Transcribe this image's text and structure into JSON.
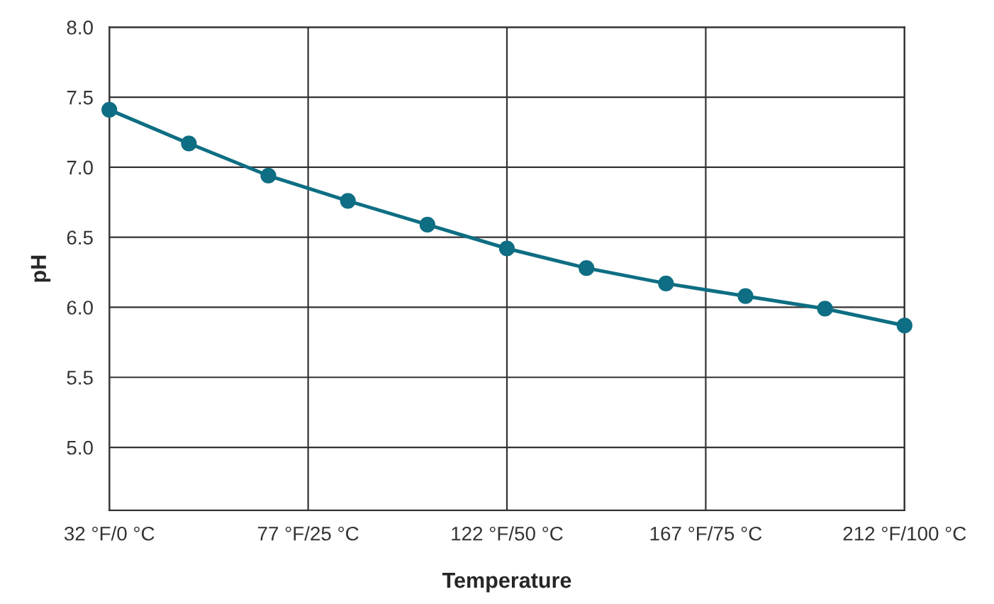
{
  "chart_data": {
    "type": "line",
    "xlabel": "Temperature",
    "ylabel": "pH",
    "categories": [
      "32 °F/0 °C",
      null,
      null,
      null,
      null,
      "77 °F/25 °C",
      null,
      null,
      null,
      null,
      "122 °F/50 °C",
      null,
      null,
      null,
      null,
      "167 °F/75 °C",
      null,
      null,
      null,
      null,
      "212 °F/100 °C"
    ],
    "series": [
      {
        "color": "#0e6e83",
        "values": [
          7.41,
          null,
          7.17,
          null,
          6.94,
          null,
          6.76,
          null,
          6.59,
          null,
          6.42,
          null,
          6.28,
          null,
          6.17,
          null,
          6.08,
          null,
          5.99,
          null,
          5.87
        ]
      }
    ],
    "ylim": [
      4.55,
      8.0
    ],
    "yticks": [
      {
        "value": 5.0,
        "label": "5.0"
      },
      {
        "value": 5.5,
        "label": "5.5"
      },
      {
        "value": 6.0,
        "label": "6.0"
      },
      {
        "value": 6.5,
        "label": "6.5"
      },
      {
        "value": 7.0,
        "label": "7.0"
      },
      {
        "value": 7.5,
        "label": "7.5"
      },
      {
        "value": 8.0,
        "label": "8.0"
      }
    ],
    "grid": true,
    "marker": "circle",
    "line_style": "solid"
  }
}
